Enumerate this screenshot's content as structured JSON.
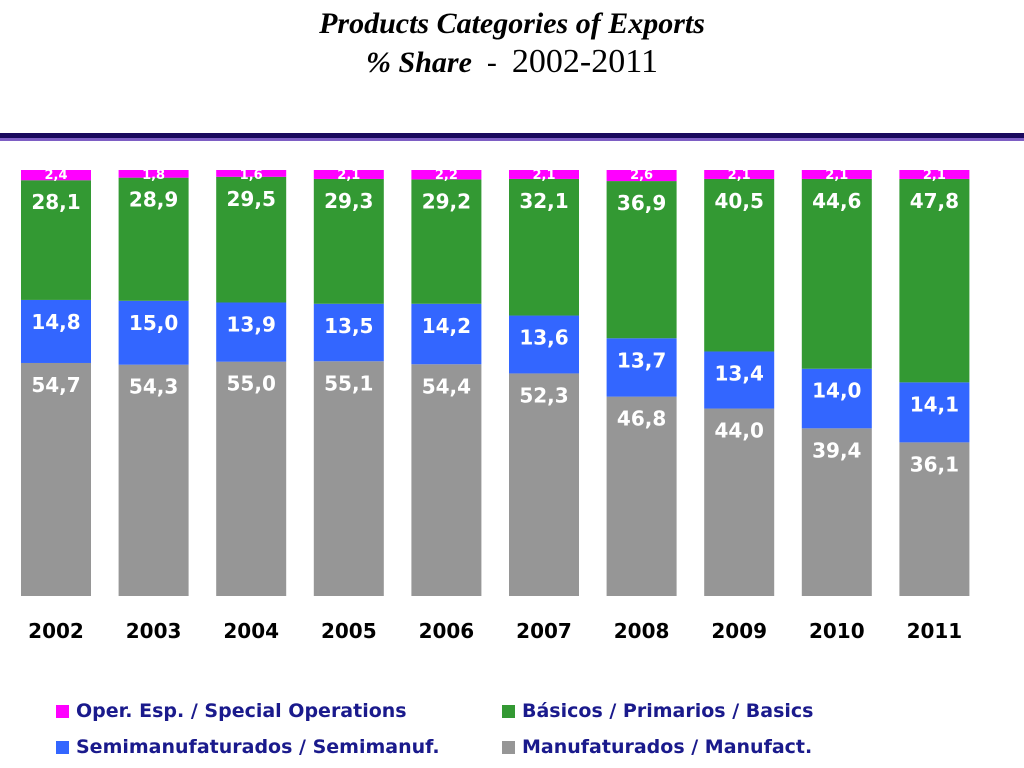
{
  "title": {
    "line1": "Products Categories of Exports",
    "line2_label": "% Share",
    "line2_range": "2002-2011"
  },
  "chart_data": {
    "type": "bar",
    "stacked": true,
    "title": "Products Categories of Exports % Share - 2002-2011",
    "categories": [
      "2002",
      "2003",
      "2004",
      "2005",
      "2006",
      "2007",
      "2008",
      "2009",
      "2010",
      "2011"
    ],
    "ylim": [
      0,
      100
    ],
    "xlabel": "",
    "ylabel": "",
    "grid": false,
    "legend_position": "bottom",
    "series": [
      {
        "key": "manufact",
        "name": "Manufaturados / Manufact.",
        "color": "#969696",
        "values": [
          54.7,
          54.3,
          55.0,
          55.1,
          54.4,
          52.3,
          46.8,
          44.0,
          39.4,
          36.1
        ],
        "labels": [
          "54,7",
          "54,3",
          "55,0",
          "55,1",
          "54,4",
          "52,3",
          "46,8",
          "44,0",
          "39,4",
          "36,1"
        ]
      },
      {
        "key": "semimanuf",
        "name": "Semimanufaturados / Semimanuf.",
        "color": "#3366ff",
        "values": [
          14.8,
          15.0,
          13.9,
          13.5,
          14.2,
          13.6,
          13.7,
          13.4,
          14.0,
          14.1
        ],
        "labels": [
          "14,8",
          "15,0",
          "13,9",
          "13,5",
          "14,2",
          "13,6",
          "13,7",
          "13,4",
          "14,0",
          "14,1"
        ]
      },
      {
        "key": "basics",
        "name": "Básicos / Primarios / Basics",
        "color": "#339933",
        "values": [
          28.1,
          28.9,
          29.5,
          29.3,
          29.2,
          32.1,
          36.9,
          40.5,
          44.6,
          47.8
        ],
        "labels": [
          "28,1",
          "28,9",
          "29,5",
          "29,3",
          "29,2",
          "32,1",
          "36,9",
          "40,5",
          "44,6",
          "47,8"
        ]
      },
      {
        "key": "special",
        "name": "Oper. Esp. / Special Operations",
        "color": "#ff00ff",
        "values": [
          2.4,
          1.8,
          1.6,
          2.1,
          2.2,
          2.1,
          2.6,
          2.1,
          2.1,
          2.1
        ],
        "labels": [
          "2,4",
          "1,8",
          "1,6",
          "2,1",
          "2,2",
          "2,1",
          "2,6",
          "2,1",
          "2,1",
          "2,1"
        ]
      }
    ],
    "legend_order": [
      "special",
      "basics",
      "semimanuf",
      "manufact"
    ]
  }
}
